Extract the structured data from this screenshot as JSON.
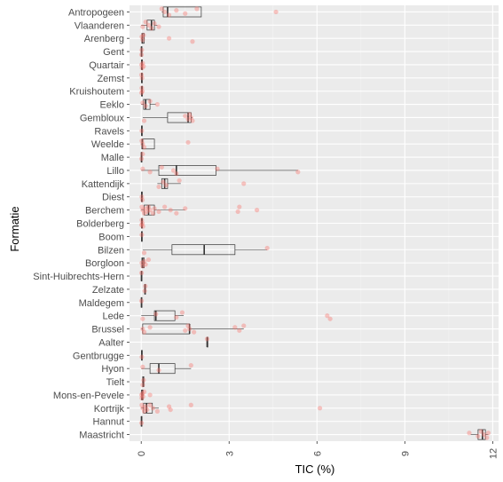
{
  "chart_data": {
    "type": "boxplot",
    "orientation": "horizontal",
    "xlabel": "TIC (%)",
    "ylabel": "Formatie",
    "xlim": [
      -0.4,
      12.2
    ],
    "xticks": [
      0,
      3,
      6,
      9,
      12
    ],
    "xtick_labels": [
      "0",
      "3",
      "6",
      "9",
      "12"
    ],
    "grid": true,
    "colors": {
      "panel": "#ebebeb",
      "grid_major": "#ffffff",
      "grid_minor": "#f4f4f4",
      "box_line": "#333333",
      "points": "#f8766d"
    },
    "categories": [
      {
        "name": "Antropogeen",
        "min": 0.7,
        "q1": 0.75,
        "median": 0.9,
        "q3": 2.05,
        "max": 2.05,
        "points": [
          0.7,
          0.8,
          0.95,
          1.2,
          1.5,
          1.9,
          4.6
        ]
      },
      {
        "name": "Vlaanderen",
        "min": 0.0,
        "q1": 0.2,
        "median": 0.35,
        "q3": 0.45,
        "max": 0.55,
        "points": [
          0.05,
          0.15,
          0.25,
          0.35,
          0.45,
          0.6
        ]
      },
      {
        "name": "Arenberg",
        "min": 0.0,
        "q1": 0.02,
        "median": 0.04,
        "q3": 0.1,
        "max": 0.12,
        "points": [
          0.02,
          0.05,
          0.08,
          0.95,
          1.75
        ]
      },
      {
        "name": "Gent",
        "min": 0.0,
        "q1": 0.0,
        "median": 0.01,
        "q3": 0.02,
        "max": 0.03,
        "points": [
          0.01,
          0.02
        ]
      },
      {
        "name": "Quartair",
        "min": 0.0,
        "q1": 0.01,
        "median": 0.02,
        "q3": 0.04,
        "max": 0.06,
        "points": [
          0.01,
          0.03,
          0.05,
          0.08
        ]
      },
      {
        "name": "Zemst",
        "min": 0.0,
        "q1": 0.01,
        "median": 0.02,
        "q3": 0.03,
        "max": 0.04,
        "points": [
          0.01,
          0.03
        ]
      },
      {
        "name": "Kruishoutem",
        "min": 0.0,
        "q1": 0.01,
        "median": 0.02,
        "q3": 0.04,
        "max": 0.05,
        "points": [
          0.01,
          0.02,
          0.04
        ]
      },
      {
        "name": "Eeklo",
        "min": 0.0,
        "q1": 0.08,
        "median": 0.15,
        "q3": 0.3,
        "max": 0.5,
        "points": [
          0.05,
          0.15,
          0.3,
          0.55
        ]
      },
      {
        "name": "Gembloux",
        "min": 0.05,
        "q1": 0.9,
        "median": 1.6,
        "q3": 1.7,
        "max": 1.75,
        "points": [
          0.1,
          1.5,
          1.6,
          1.65,
          1.7,
          1.75
        ]
      },
      {
        "name": "Ravels",
        "min": 0.0,
        "q1": 0.01,
        "median": 0.02,
        "q3": 0.03,
        "max": 0.04,
        "points": [
          0.02
        ]
      },
      {
        "name": "Weelde",
        "min": 0.0,
        "q1": 0.02,
        "median": 0.04,
        "q3": 0.45,
        "max": 0.45,
        "points": [
          0.02,
          0.05,
          0.1,
          1.6
        ]
      },
      {
        "name": "Malle",
        "min": 0.0,
        "q1": 0.0,
        "median": 0.01,
        "q3": 0.02,
        "max": 0.03,
        "points": [
          0.01,
          0.05
        ]
      },
      {
        "name": "Lillo",
        "min": 0.0,
        "q1": 0.6,
        "median": 1.2,
        "q3": 2.55,
        "max": 5.35,
        "points": [
          0.05,
          0.3,
          0.7,
          1.1,
          1.2,
          2.6,
          5.35
        ]
      },
      {
        "name": "Kattendijk",
        "min": 0.55,
        "q1": 0.7,
        "median": 0.8,
        "q3": 0.9,
        "max": 1.35,
        "points": [
          0.6,
          0.75,
          0.85,
          1.3,
          3.5
        ]
      },
      {
        "name": "Diest",
        "min": 0.0,
        "q1": 0.01,
        "median": 0.02,
        "q3": 0.03,
        "max": 0.05,
        "points": [
          0.02,
          0.04
        ]
      },
      {
        "name": "Berchem",
        "min": 0.0,
        "q1": 0.1,
        "median": 0.25,
        "q3": 0.45,
        "max": 1.5,
        "points": [
          0.02,
          0.05,
          0.1,
          0.15,
          0.2,
          0.25,
          0.3,
          0.4,
          0.45,
          0.6,
          0.8,
          1.0,
          1.2,
          1.5,
          3.3,
          3.35,
          3.95
        ]
      },
      {
        "name": "Bolderberg",
        "min": 0.0,
        "q1": 0.01,
        "median": 0.02,
        "q3": 0.04,
        "max": 0.06,
        "points": [
          0.01,
          0.02,
          0.04,
          0.06
        ]
      },
      {
        "name": "Boom",
        "min": 0.0,
        "q1": 0.01,
        "median": 0.02,
        "q3": 0.03,
        "max": 0.04,
        "points": [
          0.02
        ]
      },
      {
        "name": "Bilzen",
        "min": 0.05,
        "q1": 1.05,
        "median": 2.15,
        "q3": 3.2,
        "max": 4.3,
        "points": [
          0.1,
          4.3
        ]
      },
      {
        "name": "Borgloon",
        "min": 0.0,
        "q1": 0.02,
        "median": 0.05,
        "q3": 0.1,
        "max": 0.15,
        "points": [
          0.02,
          0.05,
          0.1,
          0.15,
          0.25
        ]
      },
      {
        "name": "Sint-Huibrechts-Hern",
        "min": 0.0,
        "q1": 0.0,
        "median": 0.01,
        "q3": 0.02,
        "max": 0.03,
        "points": [
          0.01
        ]
      },
      {
        "name": "Zelzate",
        "min": 0.1,
        "q1": 0.12,
        "median": 0.13,
        "q3": 0.14,
        "max": 0.15,
        "points": [
          0.12,
          0.14
        ]
      },
      {
        "name": "Maldegem",
        "min": 0.0,
        "q1": 0.0,
        "median": 0.01,
        "q3": 0.02,
        "max": 0.03,
        "points": [
          0.01
        ]
      },
      {
        "name": "Lede",
        "min": 0.0,
        "q1": 0.45,
        "median": 0.5,
        "q3": 1.15,
        "max": 1.45,
        "points": [
          0.05,
          0.5,
          1.2,
          1.4,
          6.35,
          6.45
        ]
      },
      {
        "name": "Brussel",
        "min": 0.0,
        "q1": 0.05,
        "median": 1.65,
        "q3": 1.65,
        "max": 3.5,
        "points": [
          0.05,
          0.1,
          0.3,
          1.5,
          1.6,
          1.65,
          1.8,
          3.2,
          3.35,
          3.5
        ]
      },
      {
        "name": "Aalter",
        "min": 2.25,
        "q1": 2.25,
        "median": 2.25,
        "q3": 2.25,
        "max": 2.25,
        "points": [
          2.25
        ]
      },
      {
        "name": "Gentbrugge",
        "min": 0.0,
        "q1": 0.01,
        "median": 0.02,
        "q3": 0.03,
        "max": 0.04,
        "points": [
          0.02
        ]
      },
      {
        "name": "Hyon",
        "min": 0.0,
        "q1": 0.3,
        "median": 0.6,
        "q3": 1.15,
        "max": 1.7,
        "points": [
          0.05,
          0.6,
          1.7
        ]
      },
      {
        "name": "Tielt",
        "min": 0.03,
        "q1": 0.05,
        "median": 0.07,
        "q3": 0.09,
        "max": 0.1,
        "points": [
          0.05,
          0.08
        ]
      },
      {
        "name": "Mons-en-Pevele",
        "min": 0.0,
        "q1": 0.01,
        "median": 0.03,
        "q3": 0.06,
        "max": 0.1,
        "points": [
          0.01,
          0.02,
          0.04,
          0.06,
          0.1,
          0.3
        ]
      },
      {
        "name": "Kortrijk",
        "min": 0.0,
        "q1": 0.08,
        "median": 0.18,
        "q3": 0.38,
        "max": 0.6,
        "points": [
          0.02,
          0.05,
          0.1,
          0.15,
          0.2,
          0.3,
          0.4,
          0.55,
          0.95,
          1.0,
          1.7,
          6.1
        ]
      },
      {
        "name": "Hannut",
        "min": 0.0,
        "q1": 0.0,
        "median": 0.01,
        "q3": 0.02,
        "max": 0.03,
        "points": [
          0.01
        ]
      },
      {
        "name": "Maastricht",
        "min": 11.25,
        "q1": 11.5,
        "median": 11.65,
        "q3": 11.75,
        "max": 11.85,
        "points": [
          11.2,
          11.5,
          11.6,
          11.7,
          11.8,
          11.85
        ]
      }
    ]
  }
}
